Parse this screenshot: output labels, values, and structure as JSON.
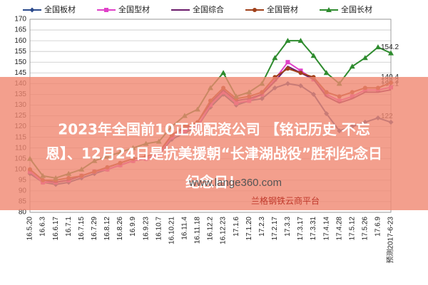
{
  "chart_data": {
    "type": "line",
    "categories": [
      "16.5.20",
      "16.6.3",
      "16.6.17",
      "16.7.1",
      "16.7.15",
      "16.7.29",
      "16.8.12",
      "16.8.26",
      "16.9.9",
      "16.9.23",
      "16.10.7",
      "16.10.21",
      "16.11.4",
      "16.11.18",
      "16.12.2",
      "16.12.23",
      "17.1.6",
      "17.1.20",
      "17.2.3",
      "17.2.17",
      "17.3.3",
      "17.3.17",
      "17.3.31",
      "17.4.14",
      "17.4.28",
      "17.5.12",
      "17.5.26",
      "17.6.9",
      "预测2017-6-23"
    ],
    "series": [
      {
        "name": "全国板材",
        "color": "#2b4a8c",
        "marker": "diamond",
        "values": [
          98,
          94,
          93,
          94,
          96,
          98,
          100,
          102,
          104,
          105,
          107,
          114,
          117,
          120,
          129,
          135,
          130,
          132,
          133,
          138,
          140,
          139,
          135,
          126,
          118,
          120,
          122,
          124,
          122
        ]
      },
      {
        "name": "全国型材",
        "color": "#e040c8",
        "marker": "square",
        "values": [
          99,
          94,
          94,
          95,
          97,
          99,
          100,
          102,
          104,
          105,
          107,
          115,
          118,
          120,
          130,
          136,
          131,
          132,
          135,
          142,
          150,
          146,
          142,
          135,
          132,
          134,
          137,
          137,
          138.3
        ]
      },
      {
        "name": "全国综合",
        "color": "#6a1a6a",
        "marker": "none",
        "values": [
          100,
          95,
          94,
          95,
          97,
          99,
          101,
          103,
          105,
          106,
          108,
          116,
          119,
          122,
          131,
          137,
          132,
          133,
          135,
          141,
          148,
          145,
          142,
          134,
          131,
          133,
          136,
          136,
          137.1
        ]
      },
      {
        "name": "全国管材",
        "color": "#a0401a",
        "marker": "circle",
        "values": [
          100,
          95,
          95,
          96,
          97,
          99,
          101,
          103,
          105,
          106,
          108,
          116,
          120,
          122,
          132,
          138,
          133,
          134,
          136,
          143,
          147,
          145,
          143,
          136,
          134,
          136,
          138,
          138,
          140.4
        ]
      },
      {
        "name": "全国长材",
        "color": "#2e8b2e",
        "marker": "triangle",
        "values": [
          105,
          97,
          96,
          98,
          100,
          104,
          106,
          108,
          110,
          112,
          113,
          120,
          125,
          128,
          138,
          145,
          134,
          136,
          140,
          152,
          160,
          160,
          153,
          145,
          140,
          148,
          152,
          157,
          154.2
        ]
      }
    ],
    "label_last": true,
    "ylim": [
      80,
      170
    ],
    "yticks": [
      80,
      85,
      90,
      95,
      100,
      105,
      110,
      115,
      120,
      125,
      130,
      135,
      140,
      145,
      150,
      155,
      160,
      165,
      170
    ],
    "grid": true
  },
  "overlay": {
    "lines": [
      "2023年全国前10正规配资公司 【铭记历史 不忘",
      "恩】、12月24日是抗美援朝“长津湖战役”胜利纪念日",
      "纪念日！"
    ],
    "watermark": "www.lange360.com",
    "brand": "兰格钢铁云商平台"
  }
}
